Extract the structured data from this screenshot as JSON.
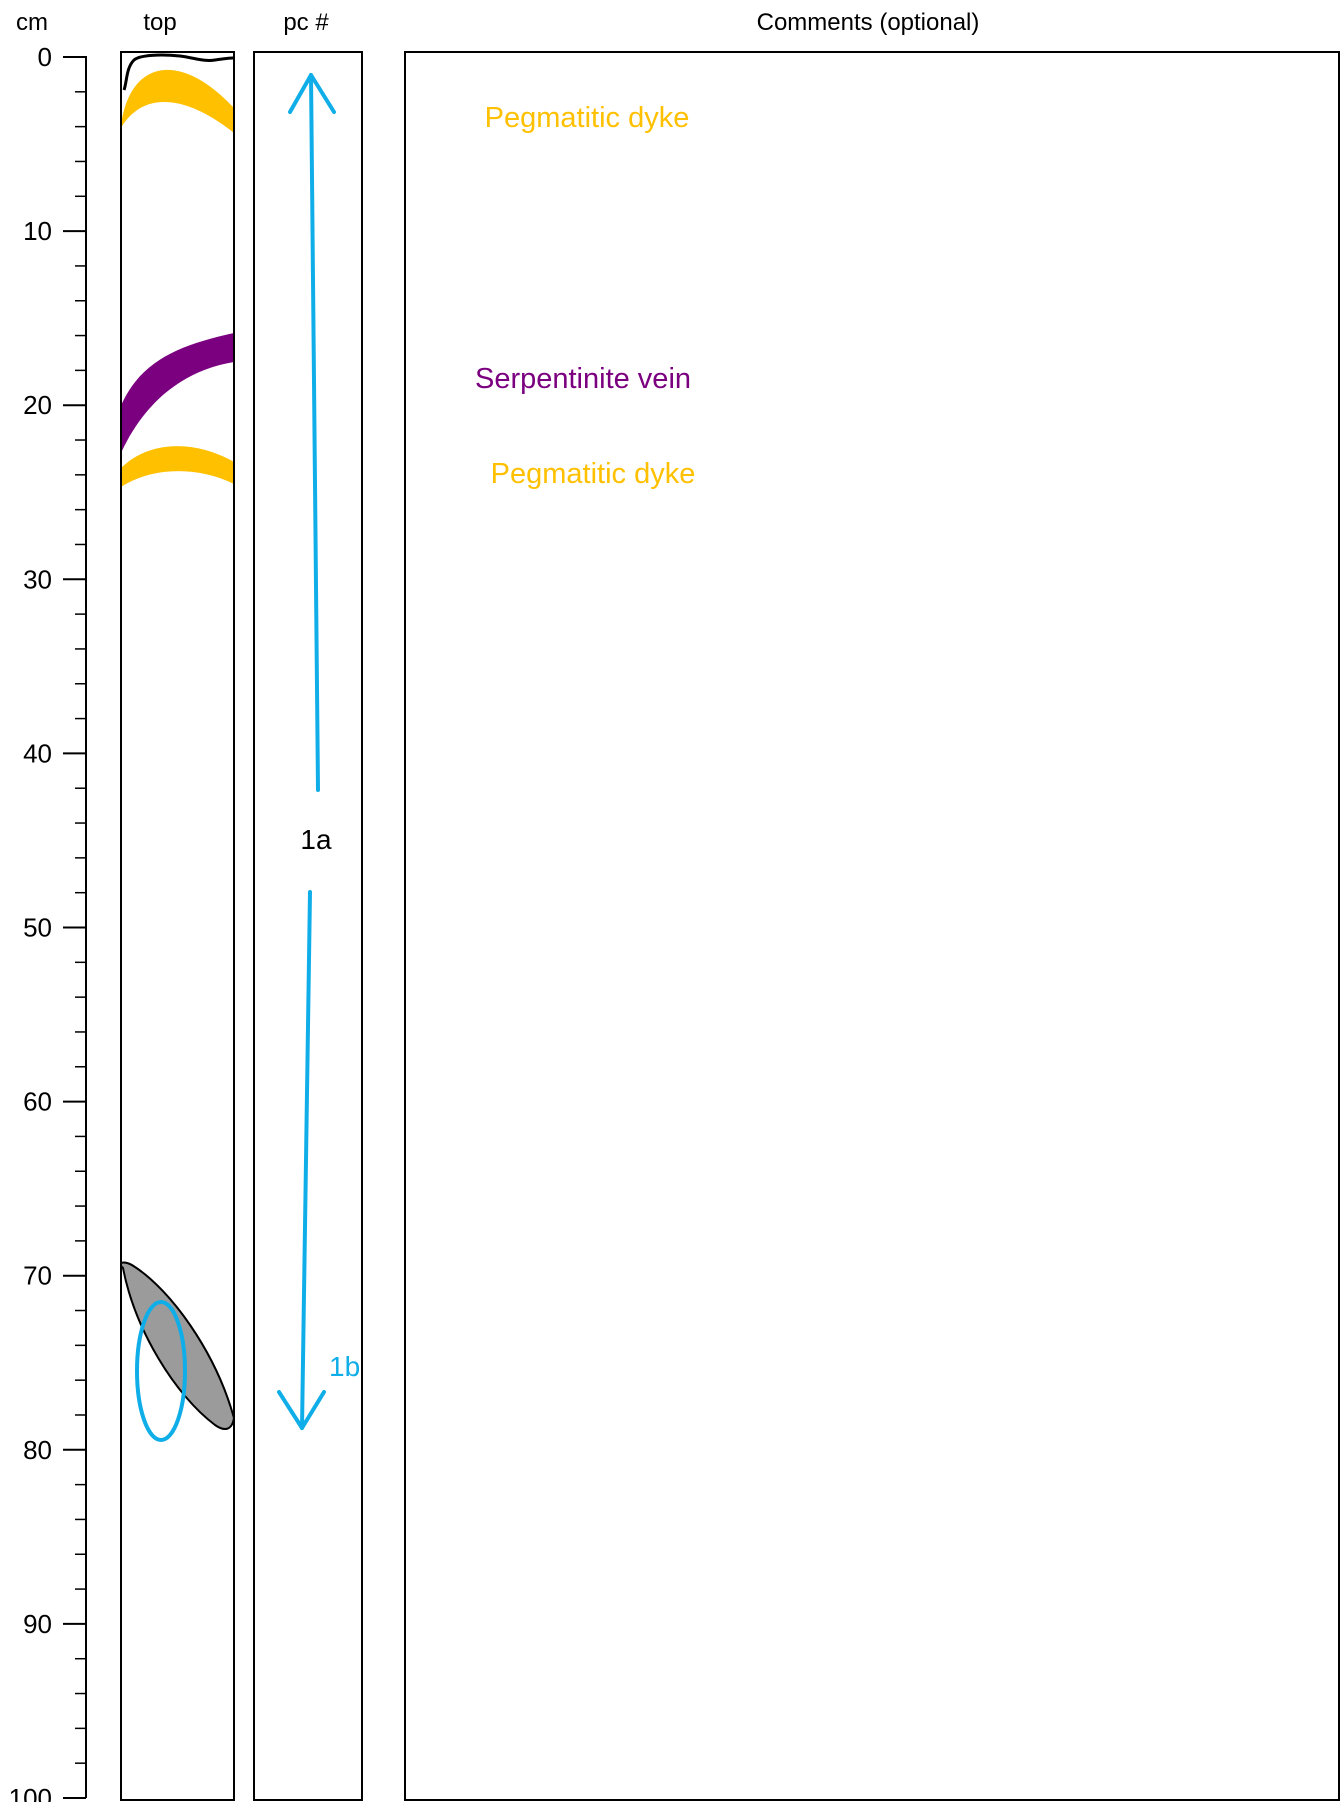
{
  "headers": {
    "scale_unit": "cm",
    "top_column": "top",
    "piece_column": "pc #",
    "comments_column": "Comments (optional)"
  },
  "depth_scale": {
    "min": 0,
    "max": 100,
    "major_step": 10,
    "minor_step": 2,
    "labels": [
      "0",
      "10",
      "20",
      "30",
      "40",
      "50",
      "60",
      "70",
      "80",
      "90",
      "100"
    ]
  },
  "colors": {
    "pegmatite": "#FFC000",
    "serpentinite": "#7B0080",
    "piece_arrow": "#10AEE8",
    "clast_fill": "#9B9B9B",
    "outline": "#000000"
  },
  "features": [
    {
      "type": "pegmatitic-dyke",
      "depth_cm": [
        1,
        4
      ]
    },
    {
      "type": "serpentinite-vein",
      "depth_cm": [
        16,
        23
      ]
    },
    {
      "type": "pegmatitic-dyke",
      "depth_cm": [
        23,
        24.5
      ]
    },
    {
      "type": "grey-clast",
      "depth_cm": [
        69,
        79
      ]
    }
  ],
  "pieces": [
    {
      "label": "1a",
      "depth_cm": [
        1,
        78.5
      ]
    },
    {
      "label": "1b",
      "depth_cm": [
        72,
        79
      ]
    }
  ],
  "comments": [
    {
      "text": "Pegmatitic dyke",
      "depth_cm": 3.3,
      "color": "#FFC000"
    },
    {
      "text": "Serpentinite vein",
      "depth_cm": 18.2,
      "color": "#7B0080"
    },
    {
      "text": "Pegmatitic dyke",
      "depth_cm": 23.8,
      "color": "#FFC000"
    }
  ]
}
